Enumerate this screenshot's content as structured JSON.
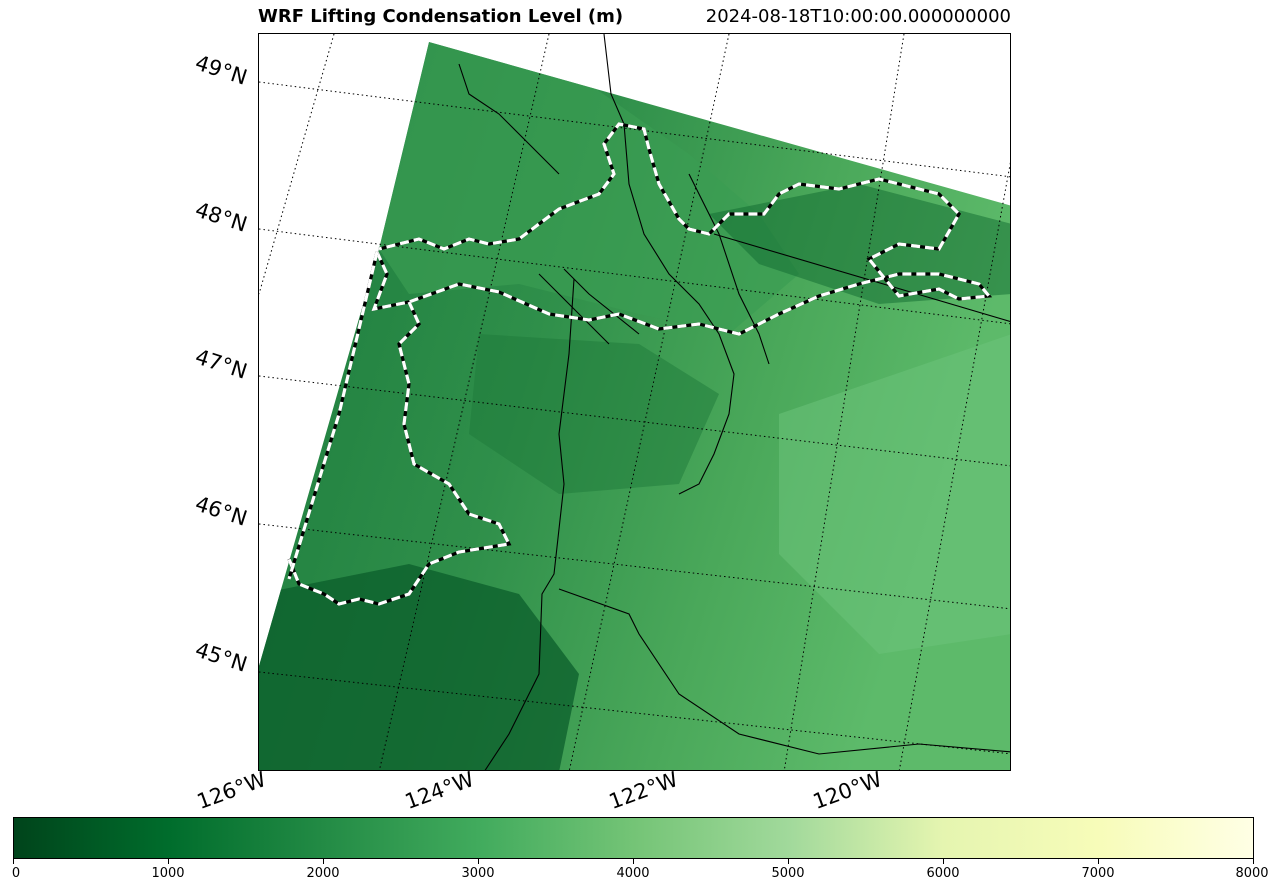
{
  "title": "WRF Lifting Condensation Level (m)",
  "timestamp": "2024-08-18T10:00:00.000000000",
  "map": {
    "projection": "lambert-conformal",
    "latitude_labels": [
      "49°N",
      "48°N",
      "47°N",
      "46°N",
      "45°N"
    ],
    "longitude_labels": [
      "126°W",
      "124°W",
      "122°W",
      "120°W"
    ],
    "gridlines": "dotted",
    "colormap": "Greens (reversed) to yellow",
    "overlays": [
      "coastlines",
      "state boundaries",
      "dashed contour"
    ]
  },
  "colorbar": {
    "min": 0,
    "max": 8000,
    "tick_labels": [
      "0",
      "1000",
      "2000",
      "3000",
      "4000",
      "5000",
      "6000",
      "7000",
      "8000"
    ],
    "colors": [
      "#00441b",
      "#006d2c",
      "#238b45",
      "#41ab5d",
      "#74c476",
      "#a1d99b",
      "#e5f5b0",
      "#f7fcb9",
      "#ffffe5"
    ]
  }
}
